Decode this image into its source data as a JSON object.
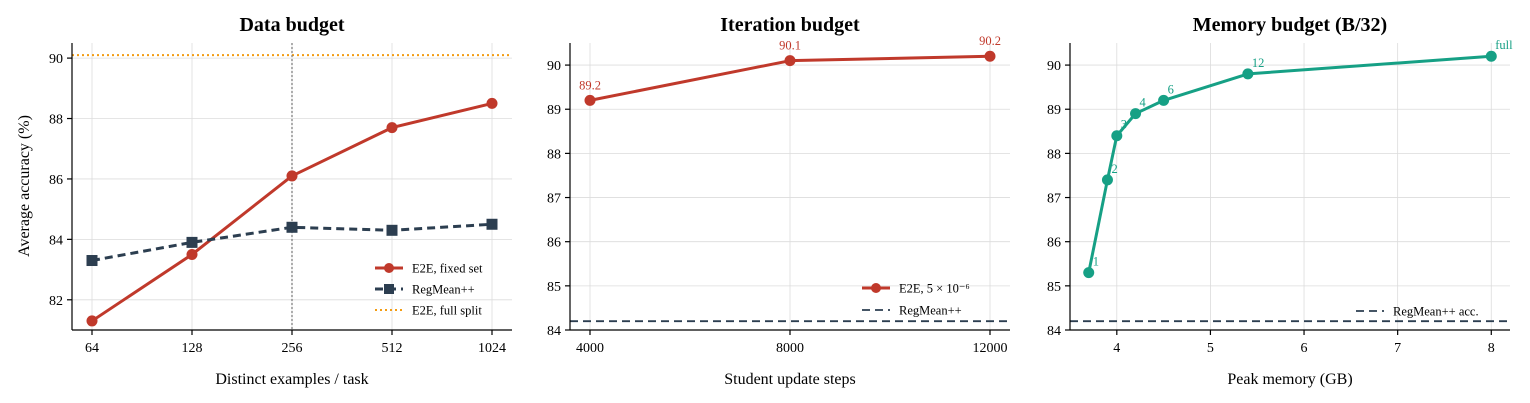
{
  "colors": {
    "e2e": "#c0392b",
    "regmean": "#2c3e50",
    "full": "#f39c12",
    "memory": "#16a085",
    "vline": "#777777"
  },
  "ylabel": "Average accuracy (%)",
  "chart_data": [
    {
      "type": "line",
      "title": "Data budget",
      "xlabel": "Distinct examples / task",
      "x_scale": "log2",
      "x": [
        64,
        128,
        256,
        512,
        1024
      ],
      "x_ticks": [
        "64",
        "128",
        "256",
        "512",
        "1024"
      ],
      "xlim": [
        64,
        1024
      ],
      "ylim": [
        81,
        90.5
      ],
      "y_ticks": [
        "82",
        "84",
        "86",
        "88",
        "90"
      ],
      "vline_x": 256,
      "series": [
        {
          "name": "E2E, fixed set",
          "style": "solid-circle",
          "values": [
            81.3,
            83.5,
            86.1,
            87.7,
            88.5
          ]
        },
        {
          "name": "RegMean++",
          "style": "dashed-square",
          "values": [
            83.3,
            83.9,
            84.4,
            84.3,
            84.5
          ]
        }
      ],
      "hline": {
        "name": "E2E, full split",
        "style": "dotted",
        "value": 90.1
      },
      "legend": "lower-right"
    },
    {
      "type": "line",
      "title": "Iteration budget",
      "xlabel": "Student update steps",
      "x": [
        4000,
        8000,
        12000
      ],
      "x_ticks": [
        "4000",
        "8000",
        "12000"
      ],
      "xlim": [
        4000,
        12000
      ],
      "ylim": [
        84,
        90.5
      ],
      "y_ticks": [
        "84",
        "85",
        "86",
        "87",
        "88",
        "89",
        "90"
      ],
      "series": [
        {
          "name": "E2E, 5 × 10⁻⁶",
          "style": "solid-circle",
          "values": [
            89.2,
            90.1,
            90.2
          ],
          "labels": [
            "89.2",
            "90.1",
            "90.2"
          ]
        }
      ],
      "hline": {
        "name": "RegMean++",
        "style": "dashed",
        "value": 84.2
      },
      "legend": "lower-right"
    },
    {
      "type": "line",
      "title": "Memory budget (B/32)",
      "xlabel": "Peak memory (GB)",
      "x": [
        3.7,
        3.9,
        4.0,
        4.2,
        4.5,
        5.4,
        8.0
      ],
      "x_ticks": [
        "4",
        "5",
        "6",
        "7",
        "8"
      ],
      "xlim": [
        3.5,
        8.2
      ],
      "ylim": [
        84,
        90.5
      ],
      "y_ticks": [
        "84",
        "85",
        "86",
        "87",
        "88",
        "89",
        "90"
      ],
      "series": [
        {
          "name": "",
          "style": "solid-circle",
          "values": [
            85.3,
            87.4,
            88.4,
            88.9,
            89.2,
            89.8,
            90.2
          ],
          "labels": [
            "1",
            "2",
            "3",
            "4",
            "6",
            "12",
            "full"
          ]
        }
      ],
      "hline": {
        "name": "RegMean++ acc.",
        "style": "dashed",
        "value": 84.2
      },
      "legend": "lower-right"
    }
  ]
}
